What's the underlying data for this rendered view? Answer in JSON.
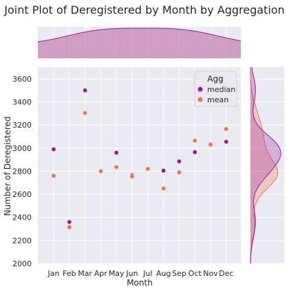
{
  "chart_data": {
    "type": "scatter",
    "title": "Joint Plot of Deregistered by Month by Aggregation",
    "xlabel": "Month",
    "ylabel": "Number of Deregistered",
    "categories": [
      "Jan",
      "Feb",
      "Mar",
      "Apr",
      "May",
      "Jun",
      "Jul",
      "Aug",
      "Sep",
      "Oct",
      "Nov",
      "Dec"
    ],
    "ylim": [
      2000,
      3700
    ],
    "yticks": [
      "2000",
      "2200",
      "2400",
      "2600",
      "2800",
      "3000",
      "3200",
      "3400",
      "3600"
    ],
    "grid": true,
    "legend": {
      "title": "Agg",
      "placement": "top-right"
    },
    "series": [
      {
        "name": "median",
        "color": "#9a1a9c",
        "values": [
          2990,
          2360,
          3500,
          null,
          2960,
          2765,
          null,
          2805,
          2885,
          2965,
          3035,
          3055
        ]
      },
      {
        "name": "mean",
        "color": "#ef7550",
        "values": [
          2760,
          2315,
          3305,
          2800,
          2835,
          2755,
          2820,
          2650,
          2790,
          3065,
          3030,
          3165
        ]
      }
    ],
    "marginal_top": {
      "type": "area",
      "color": "#c06aa3"
    },
    "marginal_right": {
      "type": "kde",
      "series": [
        "median",
        "mean"
      ]
    }
  }
}
